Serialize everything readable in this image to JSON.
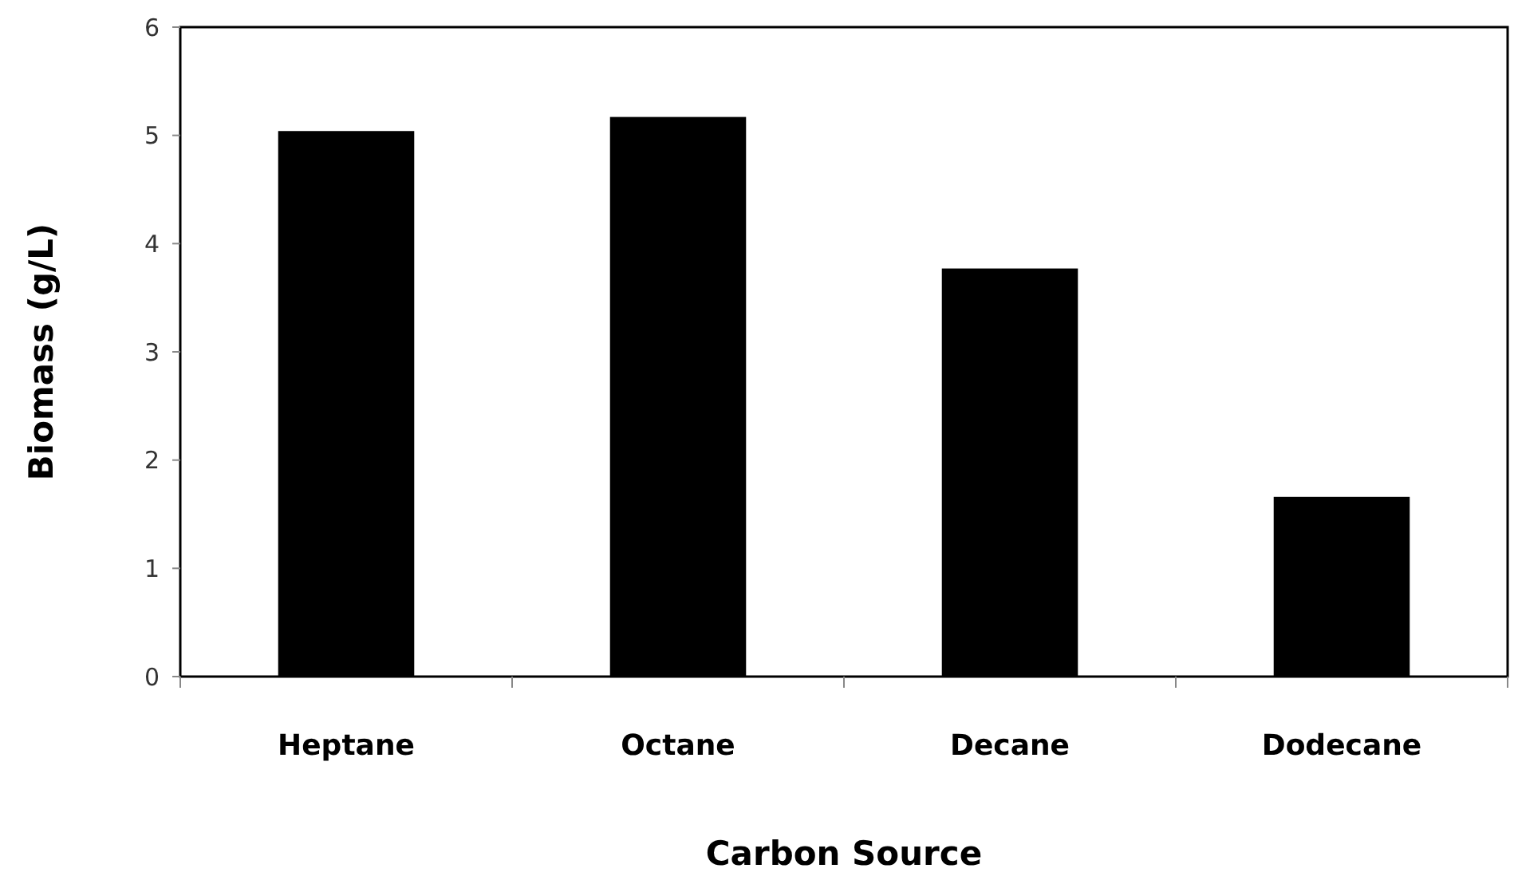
{
  "chart_data": {
    "type": "bar",
    "xlabel": "Carbon Source",
    "ylabel": "Biomass (g/L)",
    "categories": [
      "Heptane",
      "Octane",
      "Decane",
      "Dodecane"
    ],
    "values": [
      5.04,
      5.17,
      3.77,
      1.66
    ],
    "color": "#000000",
    "ylim": [
      0,
      6
    ],
    "yticks": [
      0,
      1,
      2,
      3,
      4,
      5,
      6
    ],
    "grid": false
  }
}
